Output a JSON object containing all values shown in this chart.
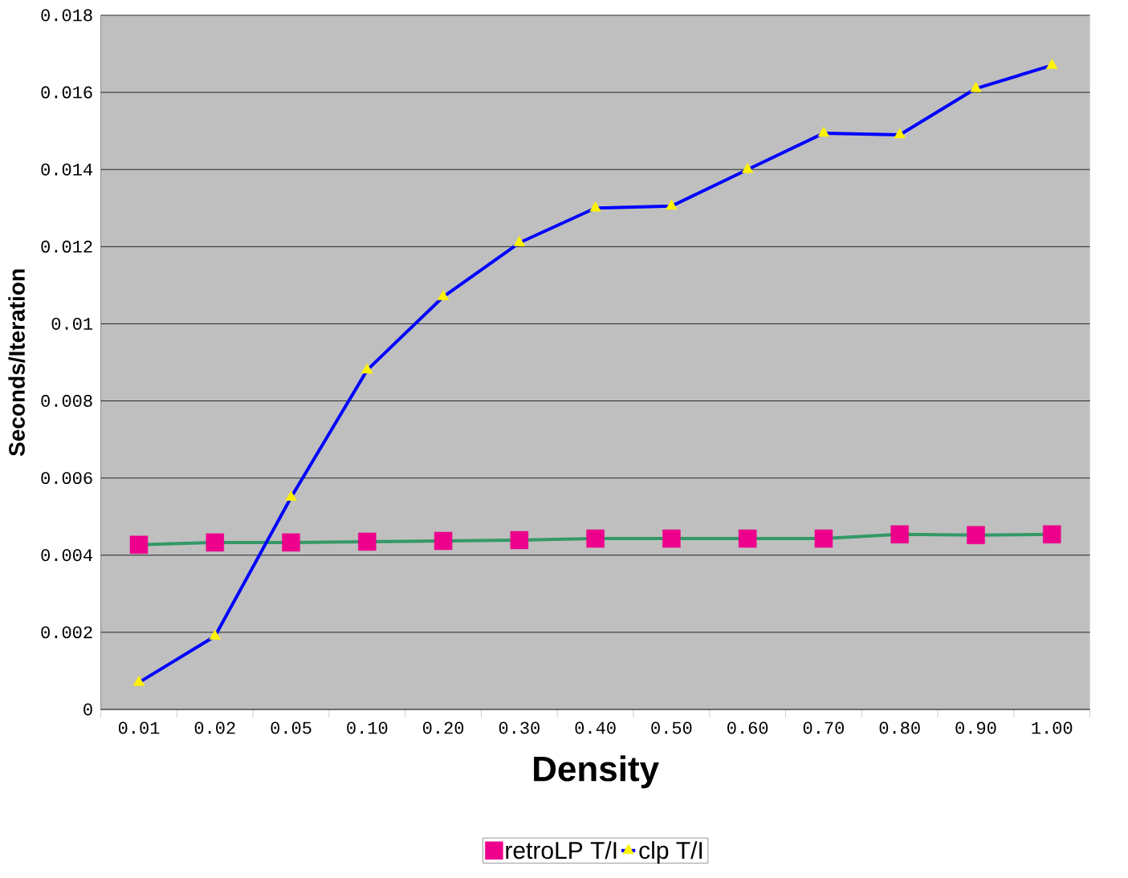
{
  "chart_data": {
    "type": "line",
    "xlabel": "Density",
    "ylabel": "Seconds/Iteration",
    "categories": [
      "0.01",
      "0.02",
      "0.05",
      "0.10",
      "0.20",
      "0.30",
      "0.40",
      "0.50",
      "0.60",
      "0.70",
      "0.80",
      "0.90",
      "1.00"
    ],
    "series": [
      {
        "name": "retroLP T/I",
        "color": "#339966",
        "marker": "square",
        "values": [
          0.00427,
          0.00433,
          0.00433,
          0.00435,
          0.00437,
          0.00439,
          0.00443,
          0.00443,
          0.00443,
          0.00443,
          0.00454,
          0.00452,
          0.00454
        ]
      },
      {
        "name": "clp T/I",
        "color": "#0000ff",
        "marker": "triangle",
        "values": [
          0.0007,
          0.0019,
          0.0055,
          0.0088,
          0.0107,
          0.0121,
          0.013,
          0.01305,
          0.014,
          0.01494,
          0.0149,
          0.0161,
          0.0167
        ]
      }
    ],
    "ylim": [
      0,
      0.018
    ],
    "yticks": [
      0,
      0.002,
      0.004,
      0.006,
      0.008,
      0.01,
      0.012,
      0.014,
      0.016,
      0.018
    ],
    "grid": "y",
    "legend": "bottom"
  }
}
